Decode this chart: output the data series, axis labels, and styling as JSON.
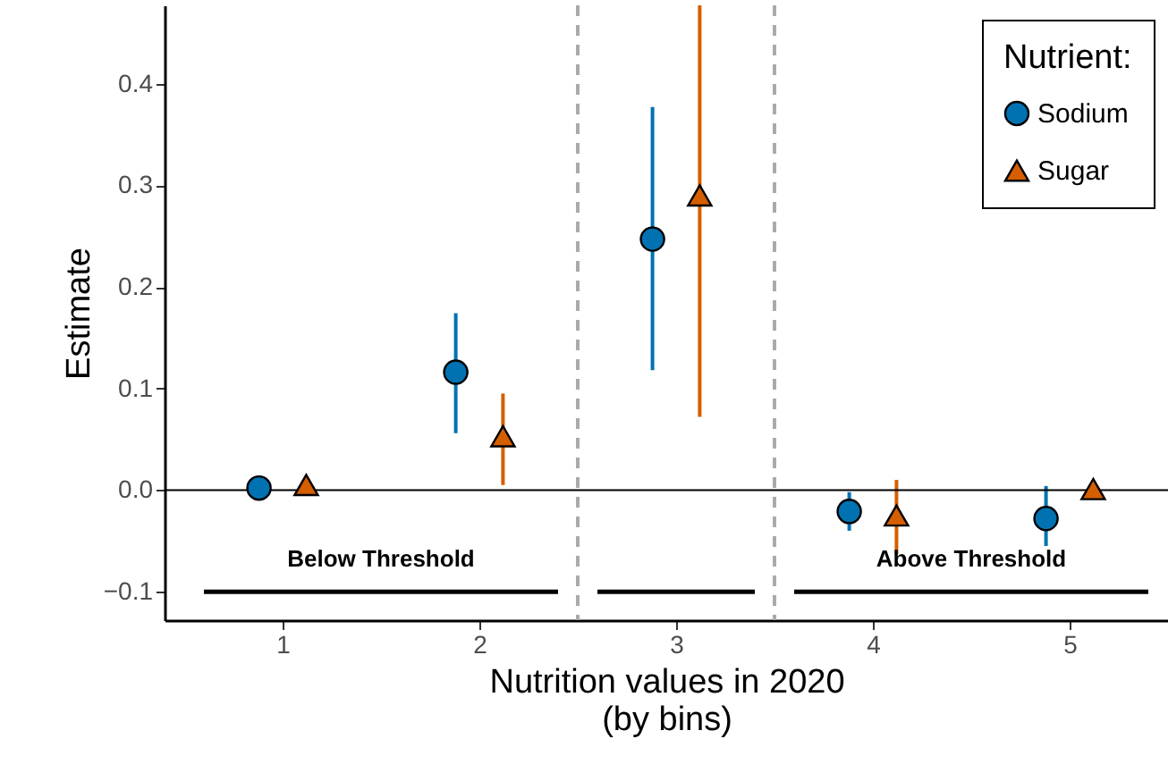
{
  "chart_data": {
    "type": "scatter",
    "xlabel": "Nutrition values in 2020\n(by bins)",
    "ylabel": "Estimate",
    "legend_title": "Nutrient:",
    "xlim": [
      0.4,
      5.5
    ],
    "xticks": [
      1,
      2,
      3,
      4,
      5
    ],
    "ylim": [
      -0.128,
      0.477
    ],
    "yticks": [
      -0.1,
      {
        "value": 0,
        "label": "0.0"
      },
      0.1,
      0.2,
      0.3,
      0.4
    ],
    "grid": false,
    "legend": "top right",
    "series": [
      {
        "name": "Sodium",
        "color": "#0072b2",
        "marker": "circle",
        "x": [
          0.88,
          1.88,
          2.88,
          3.88,
          4.88
        ],
        "values": [
          0.002,
          0.116,
          0.247,
          -0.021,
          -0.028
        ],
        "errors": [
          null,
          [
            0.056,
            0.174
          ],
          [
            0.118,
            0.377
          ],
          [
            -0.04,
            -0.002
          ],
          [
            -0.055,
            0.004
          ]
        ]
      },
      {
        "name": "Sugar",
        "color": "#d55e00",
        "marker": "triangle",
        "x": [
          1.12,
          2.12,
          3.12,
          4.12,
          5.12
        ],
        "values": [
          0.005,
          0.053,
          0.29,
          -0.025,
          0.001
        ],
        "errors": [
          null,
          [
            0.005,
            0.095
          ],
          [
            0.072,
            0.477
          ],
          [
            -0.063,
            0.01
          ],
          null
        ]
      },
      {
        "type": "line",
        "color": "#000000",
        "x": [
          0.6,
          2.4
        ],
        "values": [
          -0.1,
          -0.1
        ]
      },
      {
        "type": "line",
        "color": "#000000",
        "x": [
          2.6,
          3.4
        ],
        "values": [
          -0.1,
          -0.1
        ]
      },
      {
        "type": "line",
        "color": "#000000",
        "x": [
          3.6,
          5.4
        ],
        "values": [
          -0.1,
          -0.1
        ]
      }
    ],
    "ref_lines": [
      {
        "axis": "x",
        "value": 2.5,
        "color": "#aaaaaa",
        "line_style": "dashed"
      },
      {
        "axis": "x",
        "value": 3.5,
        "color": "#aaaaaa",
        "line_style": "dashed"
      },
      {
        "axis": "y",
        "value": 0,
        "color": "#000000",
        "line_style": "solid"
      }
    ],
    "annotations": [
      {
        "text": "Below Threshold",
        "x": 1.5,
        "y": -0.1
      },
      {
        "text": "Above Threshold",
        "x": 4.5,
        "y": -0.1
      }
    ]
  }
}
